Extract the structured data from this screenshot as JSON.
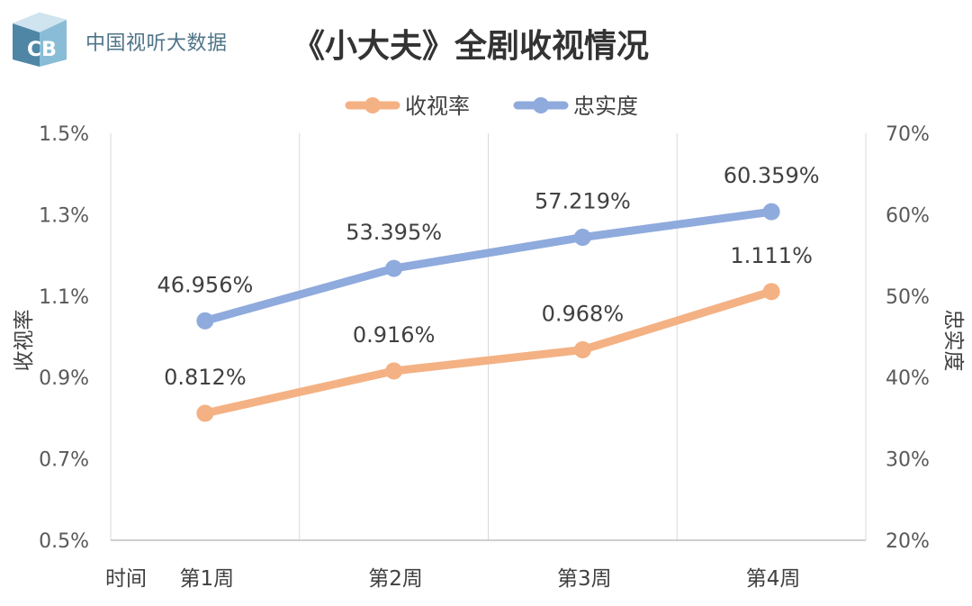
{
  "header": {
    "brand": "中国视听大数据",
    "brand_logo_letters": "CB",
    "title": "《小大夫》全剧收视情况"
  },
  "chart_data": {
    "type": "line",
    "title": "《小大夫》全剧收视情况",
    "xlabel": "时间",
    "categories": [
      "第1周",
      "第2周",
      "第3周",
      "第4周"
    ],
    "ylabel_left": "收视率",
    "ylabel_right": "忠实度",
    "ylim_left": [
      0.5,
      1.5
    ],
    "ylim_right": [
      20,
      70
    ],
    "yticks_left": [
      "0.5%",
      "0.7%",
      "0.9%",
      "1.1%",
      "1.3%",
      "1.5%"
    ],
    "yticks_right": [
      "20%",
      "30%",
      "40%",
      "50%",
      "60%",
      "70%"
    ],
    "grid": "vertical",
    "legend": "top",
    "series": [
      {
        "name": "收视率",
        "axis": "left",
        "values": [
          0.812,
          0.916,
          0.968,
          1.111
        ],
        "labels": [
          "0.812%",
          "0.916%",
          "0.968%",
          "1.111%"
        ],
        "color": "#f4b183"
      },
      {
        "name": "忠实度",
        "axis": "right",
        "values": [
          46.956,
          53.395,
          57.219,
          60.359
        ],
        "labels": [
          "46.956%",
          "53.395%",
          "57.219%",
          "60.359%"
        ],
        "color": "#8faadc"
      }
    ]
  }
}
